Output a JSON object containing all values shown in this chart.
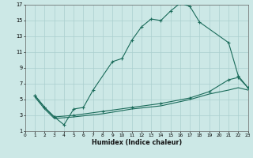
{
  "xlabel": "Humidex (Indice chaleur)",
  "xlim": [
    0,
    23
  ],
  "ylim": [
    1,
    17
  ],
  "xticks": [
    0,
    1,
    2,
    3,
    4,
    5,
    6,
    7,
    8,
    9,
    10,
    11,
    12,
    13,
    14,
    15,
    16,
    17,
    18,
    19,
    20,
    21,
    22,
    23
  ],
  "yticks": [
    1,
    3,
    5,
    7,
    9,
    11,
    13,
    15,
    17
  ],
  "background_color": "#cce8e6",
  "grid_color": "#aacfcf",
  "line_color": "#1a6b5a",
  "curve1_x": [
    1,
    2,
    3,
    4,
    5,
    6,
    7,
    9,
    10,
    11,
    12,
    13,
    14,
    15,
    16,
    17,
    18,
    21,
    22,
    23
  ],
  "curve1_y": [
    5.5,
    4.0,
    2.8,
    1.8,
    3.8,
    4.0,
    6.2,
    9.8,
    10.2,
    12.5,
    14.2,
    15.2,
    15.0,
    16.2,
    17.2,
    16.8,
    14.8,
    12.2,
    8.0,
    6.5
  ],
  "curve2_x": [
    1,
    2,
    3,
    5,
    8,
    11,
    14,
    17,
    19,
    21,
    22,
    23
  ],
  "curve2_y": [
    5.5,
    4.0,
    2.8,
    3.0,
    3.5,
    4.0,
    4.5,
    5.2,
    6.0,
    7.5,
    7.8,
    6.5
  ],
  "curve3_x": [
    1,
    2,
    3,
    5,
    8,
    11,
    14,
    17,
    19,
    21,
    22,
    23
  ],
  "curve3_y": [
    5.3,
    3.8,
    2.6,
    2.8,
    3.2,
    3.8,
    4.2,
    5.0,
    5.7,
    6.2,
    6.5,
    6.2
  ]
}
